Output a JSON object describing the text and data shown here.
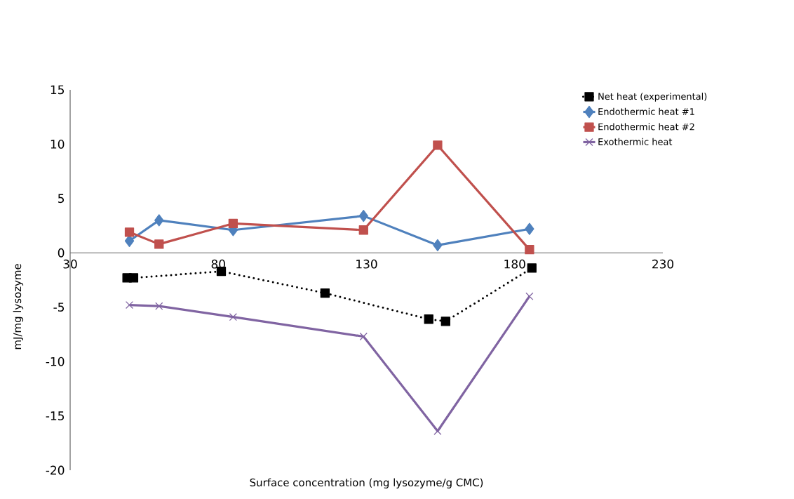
{
  "chart_data": {
    "type": "line",
    "xlabel": "Surface concentration (mg lysozyme/g CMC)",
    "ylabel": "mJ/mg lysozyme",
    "xlim": [
      30,
      230
    ],
    "xticks": [
      30,
      80,
      130,
      180,
      230
    ],
    "ylim": [
      -20,
      15
    ],
    "yticks": [
      -20,
      -15,
      -10,
      -5,
      0,
      5,
      10,
      15
    ],
    "grid": false,
    "legend": "top right",
    "series": [
      {
        "name": "Net heat (experimental)",
        "color": "#000000",
        "marker": "square",
        "line_style": "dotted",
        "x": [
          49.2,
          51.4,
          81,
          116,
          151,
          156.7,
          185.8
        ],
        "values": [
          -2.3,
          -2.3,
          -1.7,
          -3.7,
          -6.1,
          -6.3,
          -1.4
        ]
      },
      {
        "name": "Endothermic heat #1",
        "color": "#4f81bd",
        "marker": "diamond",
        "line_style": "solid",
        "x": [
          50,
          60,
          85,
          129,
          154,
          185
        ],
        "values": [
          1.1,
          3.0,
          2.1,
          3.4,
          0.7,
          2.2
        ]
      },
      {
        "name": "Endothermic heat #2",
        "color": "#c0504d",
        "marker": "square",
        "line_style": "solid",
        "x": [
          50,
          60,
          85,
          129,
          154,
          185
        ],
        "values": [
          1.9,
          0.8,
          2.7,
          2.1,
          9.9,
          0.3
        ]
      },
      {
        "name": "Exothermic heat",
        "color": "#8064a2",
        "marker": "cross",
        "line_style": "solid",
        "x": [
          50,
          60,
          85,
          129,
          154,
          185
        ],
        "values": [
          -4.8,
          -4.9,
          -5.9,
          -7.7,
          -16.4,
          -4.0
        ]
      }
    ]
  }
}
